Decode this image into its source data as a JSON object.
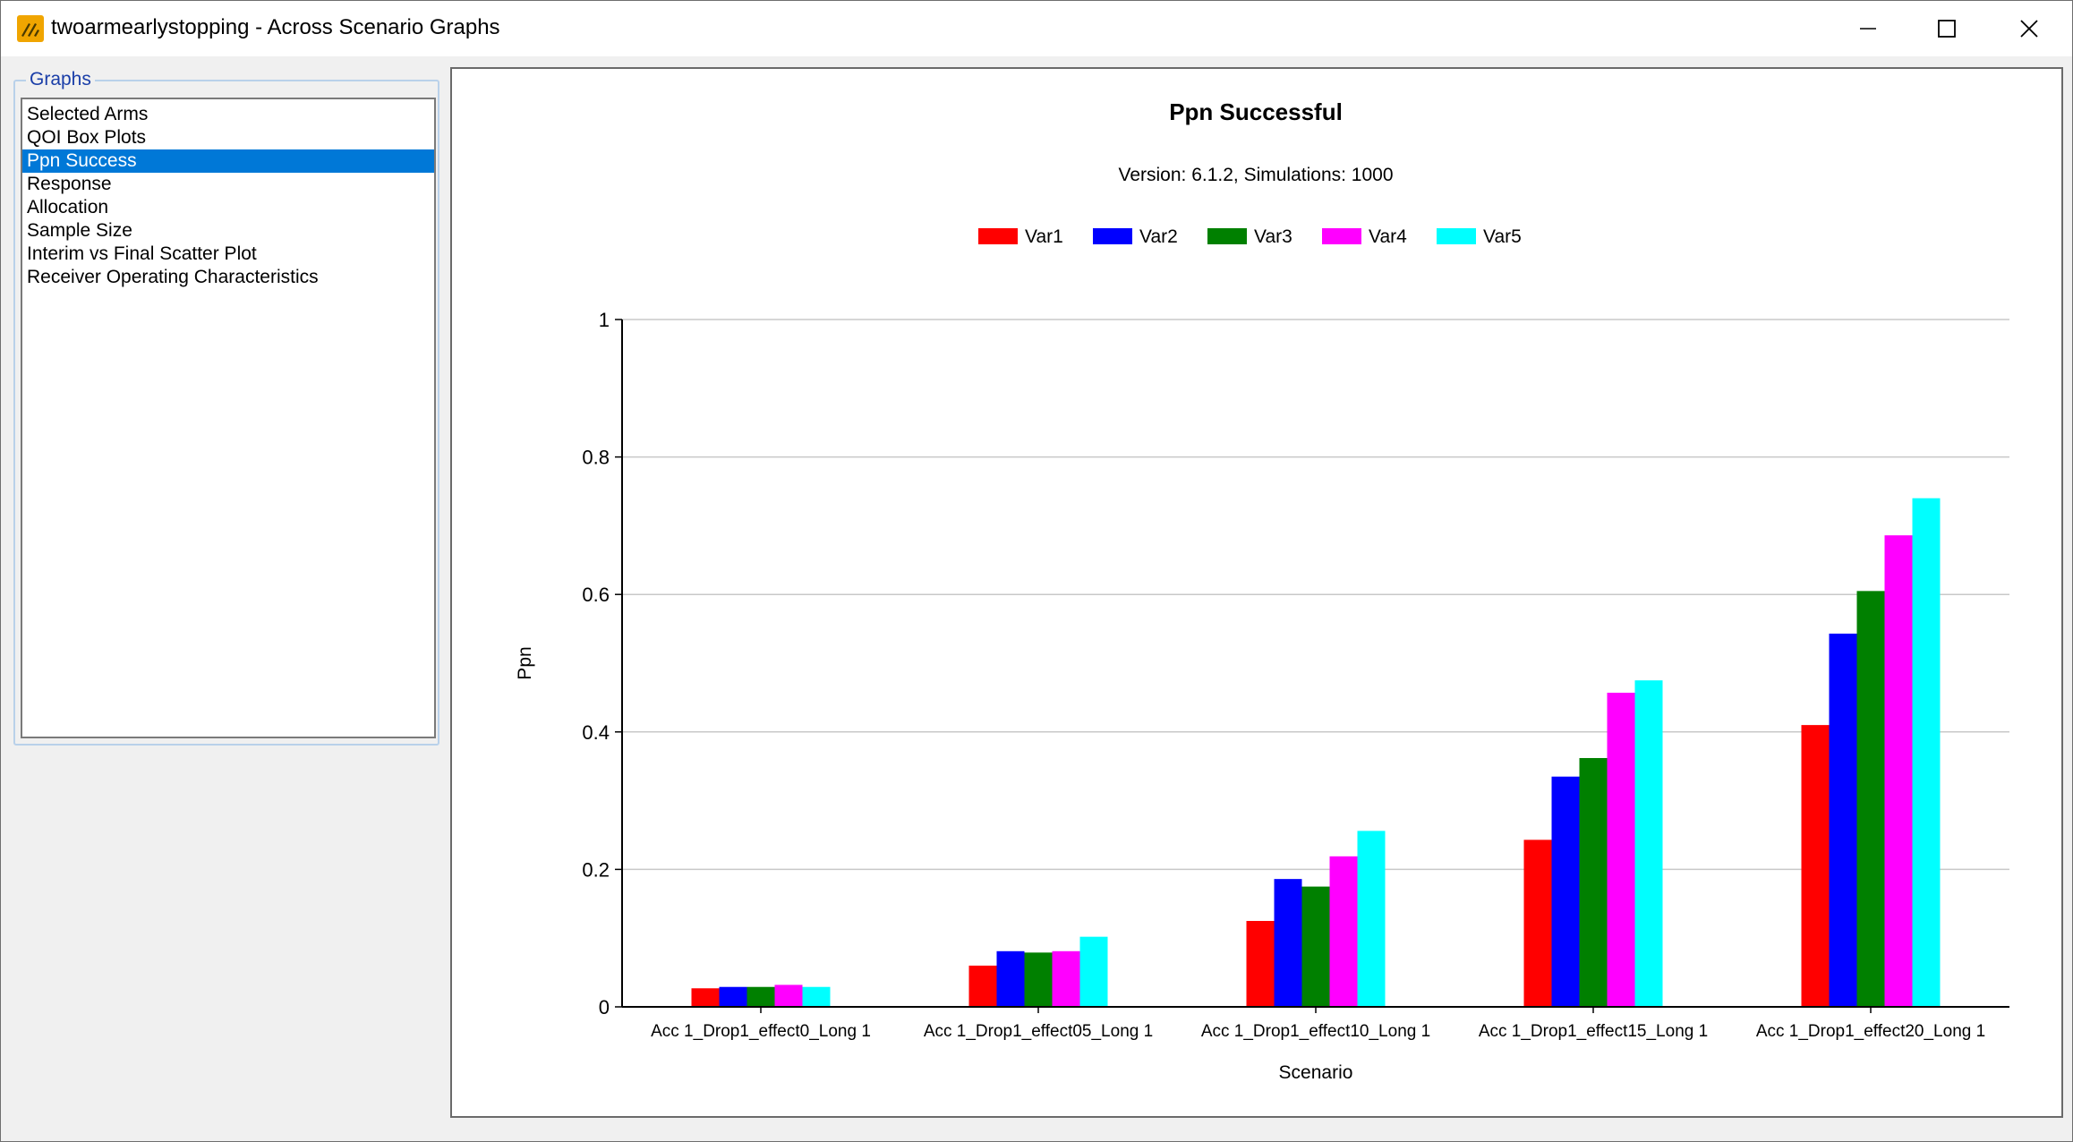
{
  "window": {
    "title": "twoarmearlystopping - Across Scenario Graphs",
    "controls": [
      "minimize-icon",
      "maximize-icon",
      "close-icon"
    ]
  },
  "sidebar": {
    "group_label": "Graphs",
    "items": [
      {
        "label": "Selected Arms",
        "selected": false
      },
      {
        "label": "QOI Box Plots",
        "selected": false
      },
      {
        "label": "Ppn Success",
        "selected": true
      },
      {
        "label": "Response",
        "selected": false
      },
      {
        "label": "Allocation",
        "selected": false
      },
      {
        "label": "Sample Size",
        "selected": false
      },
      {
        "label": "Interim vs Final Scatter Plot",
        "selected": false
      },
      {
        "label": "Receiver Operating Characteristics",
        "selected": false
      }
    ]
  },
  "chart_data": {
    "type": "bar",
    "title": "Ppn Successful",
    "subtitle": "Version: 6.1.2, Simulations: 1000",
    "xlabel": "Scenario",
    "ylabel": "Ppn",
    "ylim": [
      0,
      1
    ],
    "yticks": [
      "0",
      "0.2",
      "0.4",
      "0.6",
      "0.8",
      "1"
    ],
    "grid": true,
    "legend_position": "top-center",
    "categories": [
      "Acc 1_Drop1_effect0_Long 1",
      "Acc 1_Drop1_effect05_Long 1",
      "Acc 1_Drop1_effect10_Long 1",
      "Acc 1_Drop1_effect15_Long 1",
      "Acc 1_Drop1_effect20_Long 1"
    ],
    "series": [
      {
        "name": "Var1",
        "color": "#ff0000",
        "values": [
          0.027,
          0.06,
          0.125,
          0.243,
          0.41
        ]
      },
      {
        "name": "Var2",
        "color": "#0000ff",
        "values": [
          0.029,
          0.081,
          0.186,
          0.335,
          0.543
        ]
      },
      {
        "name": "Var3",
        "color": "#008000",
        "values": [
          0.029,
          0.079,
          0.175,
          0.362,
          0.605
        ]
      },
      {
        "name": "Var4",
        "color": "#ff00ff",
        "values": [
          0.032,
          0.081,
          0.219,
          0.457,
          0.686
        ]
      },
      {
        "name": "Var5",
        "color": "#00ffff",
        "values": [
          0.029,
          0.102,
          0.256,
          0.475,
          0.74
        ]
      }
    ]
  }
}
